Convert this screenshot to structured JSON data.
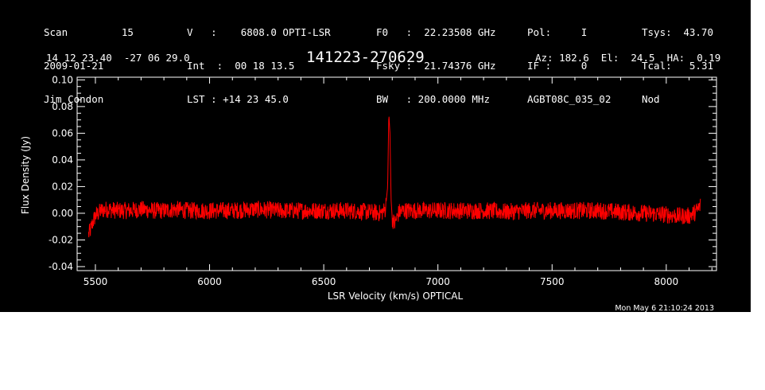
{
  "header": {
    "col1": [
      "Scan         15",
      "2009-01-21",
      "Jim Condon"
    ],
    "col2": [
      "V   :    6808.0 OPTI-LSR",
      "Int  :  00 18 13.5",
      "LST : +14 23 45.0"
    ],
    "col3": [
      "F0   :  22.23508 GHz",
      "Fsky :  21.74376 GHz",
      "BW   : 200.0000 MHz"
    ],
    "col4": [
      "Pol:     I",
      "IF :     0",
      "AGBT08C_035_02"
    ],
    "col5_labels": [
      "Tsys:",
      "Tcal:",
      "Nod"
    ],
    "col5_values": [
      "43.70",
      "5.31",
      ""
    ],
    "coords": "14 12 23.40  -27 06 29.0",
    "source_name": "141223-270629",
    "az_el_ha": "Az: 182.6  El:  24.5  HA:  0.19",
    "timestamp": "Mon May  6 21:10:24 2013"
  },
  "chart_data": {
    "type": "line",
    "xlabel": "LSR Velocity (km/s) OPTICAL",
    "ylabel": "Flux Density (Jy)",
    "xlim": [
      5420,
      8220
    ],
    "ylim": [
      -0.043,
      0.102
    ],
    "xticks": [
      5500,
      6000,
      6500,
      7000,
      7500,
      8000
    ],
    "xtick_labels": [
      "5500",
      "6000",
      "6500",
      "7000",
      "7500",
      "8000"
    ],
    "yticks": [
      -0.04,
      -0.02,
      0.0,
      0.02,
      0.04,
      0.06,
      0.08,
      0.1
    ],
    "ytick_labels": [
      "-0.04",
      "-0.02",
      "0.00",
      "0.02",
      "0.04",
      "0.06",
      "0.08",
      "0.10"
    ],
    "grid": false,
    "series": [
      {
        "color": "#ff0000",
        "x": [
          5470,
          5480,
          5490,
          5500,
          5525,
          5550,
          5600,
          5650,
          5700,
          5750,
          5800,
          5850,
          5900,
          5950,
          6000,
          6100,
          6200,
          6300,
          6400,
          6500,
          6600,
          6700,
          6750,
          6770,
          6780,
          6785,
          6790,
          6795,
          6800,
          6810,
          6830,
          6850,
          6900,
          7000,
          7100,
          7200,
          7300,
          7400,
          7500,
          7600,
          7700,
          7800,
          7900,
          8000,
          8050,
          8100,
          8130,
          8150
        ],
        "y": [
          -0.016,
          -0.012,
          -0.006,
          -0.002,
          0.002,
          0.003,
          0.002,
          0.002,
          0.003,
          0.002,
          0.002,
          0.003,
          0.002,
          0.002,
          0.002,
          0.002,
          0.003,
          0.002,
          0.002,
          0.002,
          0.002,
          0.001,
          0.0,
          0.003,
          0.02,
          0.075,
          0.06,
          0.01,
          -0.004,
          -0.008,
          0.001,
          0.002,
          0.002,
          0.002,
          0.002,
          0.002,
          0.001,
          0.002,
          0.002,
          0.002,
          0.002,
          0.001,
          0.0,
          -0.001,
          -0.002,
          -0.002,
          0.001,
          0.006
        ]
      }
    ]
  }
}
